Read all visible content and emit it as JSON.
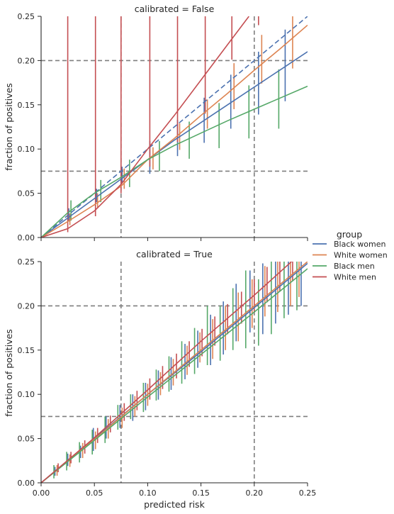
{
  "chart_data": {
    "type": "line",
    "xlabel": "predicted risk",
    "ylabel": "fraction of positives",
    "xlim": [
      0,
      0.25
    ],
    "ylim": [
      0,
      0.25
    ],
    "xticks": [
      "0.00",
      "0.05",
      "0.10",
      "0.15",
      "0.20",
      "0.25"
    ],
    "yticks": [
      "0.00",
      "0.05",
      "0.10",
      "0.15",
      "0.20",
      "0.25"
    ],
    "reference_lines": {
      "x": [
        0.075,
        0.2
      ],
      "y": [
        0.075,
        0.2
      ]
    },
    "legend": {
      "title": "group",
      "placement": "right",
      "entries": [
        {
          "label": "Black women",
          "color": "#4c72b0"
        },
        {
          "label": "White women",
          "color": "#dd8452"
        },
        {
          "label": "Black men",
          "color": "#55a868"
        },
        {
          "label": "White men",
          "color": "#c44e52"
        }
      ]
    },
    "diagonal_color": "#4c72b0",
    "panels": [
      {
        "title": "calibrated = False",
        "curves": [
          {
            "group": "Black women",
            "x": [
              0,
              0.025,
              0.05,
              0.075,
              0.1,
              0.125,
              0.15,
              0.175,
              0.2,
              0.225,
              0.25
            ],
            "y": [
              0,
              0.022,
              0.044,
              0.066,
              0.088,
              0.11,
              0.13,
              0.15,
              0.17,
              0.19,
              0.21
            ]
          },
          {
            "group": "White women",
            "x": [
              0,
              0.025,
              0.05,
              0.075,
              0.1,
              0.125,
              0.15,
              0.175,
              0.2,
              0.225,
              0.25
            ],
            "y": [
              0,
              0.018,
              0.037,
              0.058,
              0.088,
              0.112,
              0.138,
              0.163,
              0.189,
              0.214,
              0.24
            ]
          },
          {
            "group": "Black men",
            "x": [
              0,
              0.025,
              0.05,
              0.075,
              0.1,
              0.125,
              0.15,
              0.175,
              0.2,
              0.225,
              0.25
            ],
            "y": [
              0,
              0.028,
              0.05,
              0.068,
              0.088,
              0.104,
              0.118,
              0.132,
              0.145,
              0.158,
              0.171
            ]
          },
          {
            "group": "White men",
            "x": [
              0,
              0.025,
              0.05,
              0.075,
              0.1,
              0.125,
              0.15,
              0.175,
              0.195
            ],
            "y": [
              0,
              0.01,
              0.03,
              0.06,
              0.1,
              0.138,
              0.178,
              0.218,
              0.25
            ]
          }
        ],
        "error_bars": [
          {
            "group": "Black women",
            "x": [
              0.026,
              0.052,
              0.076,
              0.102,
              0.128,
              0.153,
              0.178,
              0.204,
              0.229
            ],
            "low": [
              0.018,
              0.04,
              0.062,
              0.072,
              0.092,
              0.107,
              0.123,
              0.139,
              0.154
            ],
            "high": [
              0.033,
              0.055,
              0.08,
              0.109,
              0.133,
              0.158,
              0.184,
              0.21,
              0.235
            ]
          },
          {
            "group": "White women",
            "x": [
              0.027,
              0.053,
              0.078,
              0.105,
              0.13,
              0.156,
              0.181,
              0.207,
              0.236
            ],
            "low": [
              0.014,
              0.033,
              0.055,
              0.077,
              0.099,
              0.123,
              0.145,
              0.174,
              0.191
            ],
            "high": [
              0.027,
              0.05,
              0.078,
              0.102,
              0.129,
              0.156,
              0.197,
              0.229,
              0.25
            ]
          },
          {
            "group": "Black men",
            "x": [
              0.028,
              0.056,
              0.083,
              0.111,
              0.139,
              0.167,
              0.195,
              0.223
            ],
            "low": [
              0.019,
              0.04,
              0.057,
              0.075,
              0.089,
              0.101,
              0.112,
              0.123
            ],
            "high": [
              0.042,
              0.065,
              0.088,
              0.109,
              0.131,
              0.152,
              0.172,
              0.19
            ]
          },
          {
            "group": "White men",
            "x": [
              0.025,
              0.051,
              0.075,
              0.102,
              0.128,
              0.154,
              0.179,
              0.204
            ],
            "low": [
              0.006,
              0.024,
              0.05,
              0.08,
              0.108,
              0.14,
              0.201,
              0.24
            ]
          }
        ]
      },
      {
        "title": "calibrated = True",
        "curves": [
          {
            "group": "Black women",
            "x": [
              0,
              0.05,
              0.1,
              0.15,
              0.2,
              0.25
            ],
            "y": [
              0,
              0.05,
              0.1,
              0.148,
              0.198,
              0.248
            ]
          },
          {
            "group": "White women",
            "x": [
              0,
              0.05,
              0.1,
              0.15,
              0.2,
              0.25
            ],
            "y": [
              0,
              0.049,
              0.1,
              0.15,
              0.2,
              0.25
            ]
          },
          {
            "group": "Black men",
            "x": [
              0,
              0.05,
              0.1,
              0.15,
              0.2,
              0.25
            ],
            "y": [
              0,
              0.048,
              0.097,
              0.145,
              0.193,
              0.242
            ]
          },
          {
            "group": "White men",
            "x": [
              0,
              0.05,
              0.1,
              0.15,
              0.2,
              0.235
            ],
            "y": [
              0,
              0.051,
              0.105,
              0.16,
              0.212,
              0.25
            ]
          }
        ],
        "error_bars": [
          {
            "group": "Black women",
            "x": [
              0.013,
              0.025,
              0.037,
              0.049,
              0.061,
              0.074,
              0.086,
              0.098,
              0.11,
              0.122,
              0.135,
              0.147,
              0.159,
              0.171,
              0.183,
              0.196,
              0.208,
              0.22,
              0.232,
              0.244
            ],
            "low": [
              0.008,
              0.019,
              0.028,
              0.036,
              0.05,
              0.062,
              0.07,
              0.082,
              0.094,
              0.105,
              0.117,
              0.13,
              0.133,
              0.145,
              0.16,
              0.17,
              0.168,
              0.18,
              0.19,
              0.2
            ],
            "high": [
              0.018,
              0.033,
              0.042,
              0.062,
              0.075,
              0.088,
              0.1,
              0.113,
              0.127,
              0.142,
              0.157,
              0.172,
              0.19,
              0.205,
              0.225,
              0.24,
              0.248,
              0.25,
              0.25,
              0.25
            ]
          },
          {
            "group": "White women",
            "x": [
              0.015,
              0.027,
              0.039,
              0.051,
              0.063,
              0.076,
              0.088,
              0.1,
              0.112,
              0.124,
              0.137,
              0.149,
              0.161,
              0.173,
              0.185,
              0.198,
              0.21,
              0.222,
              0.234,
              0.242
            ],
            "low": [
              0.008,
              0.018,
              0.028,
              0.038,
              0.05,
              0.062,
              0.075,
              0.087,
              0.099,
              0.11,
              0.122,
              0.136,
              0.14,
              0.15,
              0.16,
              0.175,
              0.188,
              0.193,
              0.2,
              0.21
            ],
            "high": [
              0.02,
              0.032,
              0.045,
              0.058,
              0.072,
              0.085,
              0.098,
              0.112,
              0.125,
              0.14,
              0.155,
              0.17,
              0.185,
              0.2,
              0.215,
              0.23,
              0.245,
              0.25,
              0.25,
              0.25
            ]
          },
          {
            "group": "Black men",
            "x": [
              0.012,
              0.024,
              0.036,
              0.048,
              0.06,
              0.072,
              0.084,
              0.096,
              0.108,
              0.12,
              0.132,
              0.144,
              0.156,
              0.168,
              0.18,
              0.192,
              0.204,
              0.216,
              0.228,
              0.24
            ],
            "low": [
              0.005,
              0.014,
              0.023,
              0.032,
              0.045,
              0.06,
              0.072,
              0.08,
              0.093,
              0.103,
              0.112,
              0.123,
              0.133,
              0.138,
              0.15,
              0.152,
              0.155,
              0.168,
              0.186,
              0.195
            ],
            "high": [
              0.02,
              0.035,
              0.046,
              0.06,
              0.075,
              0.088,
              0.1,
              0.113,
              0.128,
              0.143,
              0.16,
              0.175,
              0.2,
              0.2,
              0.22,
              0.24,
              0.23,
              0.25,
              0.25,
              0.25
            ]
          },
          {
            "group": "White men",
            "x": [
              0.016,
              0.028,
              0.041,
              0.053,
              0.065,
              0.078,
              0.09,
              0.102,
              0.114,
              0.127,
              0.139,
              0.151,
              0.163,
              0.175,
              0.188,
              0.2,
              0.212,
              0.224,
              0.236
            ],
            "low": [
              0.012,
              0.022,
              0.033,
              0.045,
              0.057,
              0.07,
              0.082,
              0.094,
              0.106,
              0.118,
              0.131,
              0.143,
              0.155,
              0.168,
              0.18,
              0.192,
              0.204,
              0.216,
              0.228
            ],
            "high": [
              0.022,
              0.035,
              0.048,
              0.062,
              0.076,
              0.09,
              0.104,
              0.118,
              0.132,
              0.146,
              0.16,
              0.174,
              0.188,
              0.202,
              0.216,
              0.23,
              0.244,
              0.25,
              0.25
            ]
          }
        ]
      }
    ]
  }
}
